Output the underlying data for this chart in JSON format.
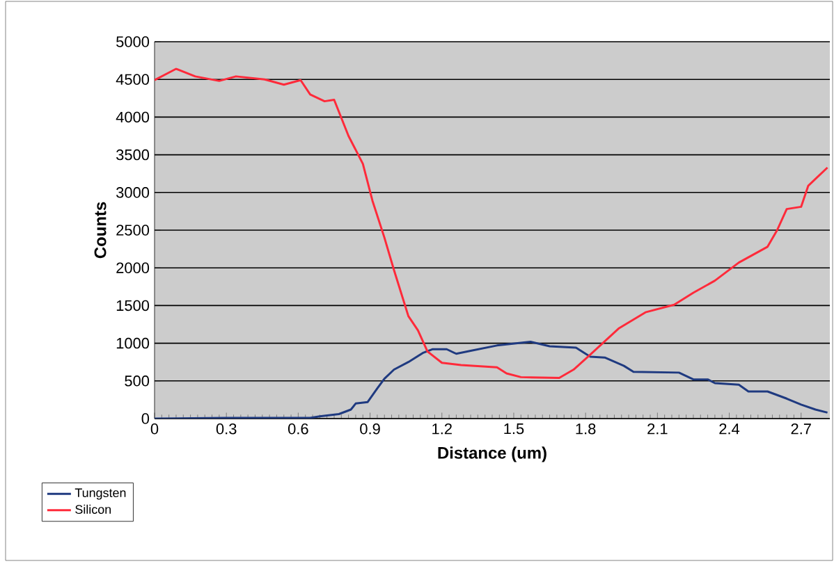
{
  "chart_data": {
    "type": "line",
    "xlabel": "Distance (um)",
    "ylabel": "Counts",
    "xlim": [
      0,
      2.82
    ],
    "ylim": [
      0,
      5000
    ],
    "xticks": [
      0,
      0.3,
      0.6,
      0.9,
      1.2,
      1.5,
      1.8,
      2.1,
      2.4,
      2.7
    ],
    "yticks": [
      0,
      500,
      1000,
      1500,
      2000,
      2500,
      3000,
      3500,
      4000,
      4500,
      5000
    ],
    "grid": "y",
    "legend": "bottom left",
    "marker": "none",
    "line_style": "solid",
    "series": [
      {
        "name": "Tungsten",
        "color": "#1f3a80",
        "x": [
          0,
          0.3,
          0.6,
          0.65,
          0.69,
          0.77,
          0.82,
          0.84,
          0.89,
          0.93,
          0.96,
          1.0,
          1.06,
          1.12,
          1.16,
          1.22,
          1.26,
          1.32,
          1.43,
          1.57,
          1.65,
          1.76,
          1.82,
          1.88,
          1.96,
          2.0,
          2.19,
          2.25,
          2.31,
          2.34,
          2.44,
          2.48,
          2.56,
          2.64,
          2.7,
          2.76,
          2.81
        ],
        "values": [
          0,
          10,
          10,
          10,
          30,
          60,
          120,
          200,
          220,
          400,
          530,
          650,
          750,
          870,
          920,
          920,
          860,
          900,
          970,
          1020,
          960,
          940,
          820,
          810,
          700,
          620,
          610,
          520,
          520,
          470,
          450,
          360,
          360,
          265,
          185,
          120,
          80
        ]
      },
      {
        "name": "Silicon",
        "color": "#ff2a3a",
        "x": [
          0,
          0.09,
          0.17,
          0.27,
          0.34,
          0.46,
          0.54,
          0.61,
          0.65,
          0.71,
          0.75,
          0.81,
          0.87,
          0.91,
          0.96,
          1.0,
          1.06,
          1.1,
          1.14,
          1.2,
          1.28,
          1.43,
          1.47,
          1.53,
          1.69,
          1.75,
          1.82,
          1.94,
          2.05,
          2.17,
          2.25,
          2.34,
          2.44,
          2.56,
          2.6,
          2.64,
          2.7,
          2.73,
          2.81
        ],
        "values": [
          4490,
          4640,
          4540,
          4480,
          4540,
          4500,
          4430,
          4490,
          4300,
          4210,
          4230,
          3750,
          3380,
          2890,
          2400,
          1970,
          1360,
          1170,
          890,
          740,
          710,
          680,
          600,
          550,
          540,
          650,
          850,
          1200,
          1410,
          1510,
          1670,
          1830,
          2070,
          2280,
          2500,
          2780,
          2810,
          3090,
          3330
        ]
      }
    ]
  }
}
